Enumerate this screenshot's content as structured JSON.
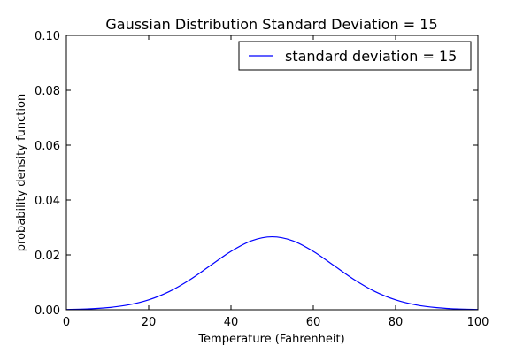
{
  "chart_data": {
    "type": "line",
    "title": "Gaussian Distribution Standard Deviation = 15",
    "xlabel": "Temperature (Fahrenheit)",
    "ylabel": "probability density function",
    "xlim": [
      0,
      100
    ],
    "ylim": [
      0,
      0.1
    ],
    "x_ticks": [
      0,
      20,
      40,
      60,
      80,
      100
    ],
    "x_tick_labels": [
      "0",
      "20",
      "40",
      "60",
      "80",
      "100"
    ],
    "y_ticks": [
      0,
      0.02,
      0.04,
      0.06,
      0.08,
      0.1
    ],
    "y_tick_labels": [
      "0.00",
      "0.02",
      "0.04",
      "0.06",
      "0.08",
      "0.10"
    ],
    "grid": false,
    "legend_position": "top-right",
    "series": [
      {
        "name": "standard deviation = 15",
        "color": "#0000ff",
        "x": [
          0,
          5,
          10,
          15,
          20,
          25,
          30,
          35,
          40,
          45,
          50,
          55,
          60,
          65,
          70,
          75,
          80,
          85,
          90,
          95,
          100
        ],
        "y": [
          0.000102,
          0.000295,
          0.00076,
          0.001749,
          0.003599,
          0.006632,
          0.010934,
          0.016131,
          0.021297,
          0.025159,
          0.026596,
          0.025159,
          0.021297,
          0.016131,
          0.010934,
          0.006632,
          0.003599,
          0.001749,
          0.00076,
          0.000295,
          0.000102
        ]
      }
    ]
  }
}
